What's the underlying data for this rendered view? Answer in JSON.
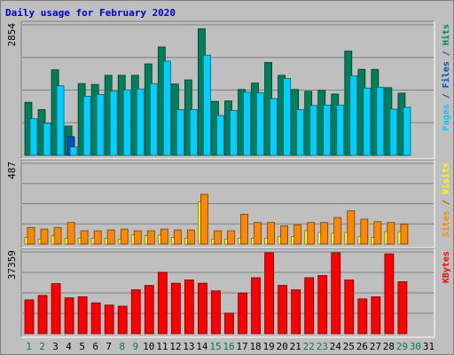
{
  "chart_data": {
    "type": "bar",
    "title": "Daily usage for February 2020",
    "categories": [
      "1",
      "2",
      "3",
      "4",
      "5",
      "6",
      "7",
      "8",
      "9",
      "10",
      "11",
      "12",
      "13",
      "14",
      "15",
      "16",
      "17",
      "18",
      "19",
      "20",
      "21",
      "22",
      "23",
      "24",
      "25",
      "26",
      "27",
      "28",
      "29",
      "30",
      "31"
    ],
    "weekend_days": [
      "1",
      "2",
      "8",
      "9",
      "15",
      "16",
      "22",
      "23",
      "29",
      "30"
    ],
    "panels": [
      {
        "id": "pages-files-hits",
        "ymax": 2854,
        "ymax_label": "2854",
        "right_labels": [
          {
            "text": "Pages",
            "color": "#00c8ff"
          },
          {
            "text": " / ",
            "color": "#00509e"
          },
          {
            "text": "Files",
            "color": "#0050c8"
          },
          {
            "text": " / ",
            "color": "#00509e"
          },
          {
            "text": "Hits",
            "color": "#008850"
          }
        ],
        "series": [
          {
            "name": "Hits",
            "color": "#00805a",
            "values": [
              1160,
              1000,
              1870,
              640,
              1570,
              1550,
              1750,
              1750,
              1750,
              2000,
              2370,
              1560,
              1650,
              2770,
              1180,
              1190,
              1440,
              1580,
              2030,
              1750,
              1440,
              1400,
              1420,
              1340,
              2280,
              1880,
              1880,
              1480,
              1360,
              0,
              0
            ]
          },
          {
            "name": "Files",
            "color": "#0050c8",
            "values": [
              0,
              0,
              0,
              410,
              0,
              0,
              0,
              0,
              0,
              0,
              0,
              0,
              0,
              0,
              0,
              0,
              0,
              0,
              0,
              0,
              0,
              0,
              0,
              0,
              0,
              0,
              0,
              0,
              0,
              0,
              0
            ]
          },
          {
            "name": "Pages",
            "color": "#00d0ff",
            "values": [
              800,
              700,
              1520,
              180,
              1290,
              1330,
              1400,
              1430,
              1450,
              1570,
              2060,
              1000,
              1000,
              2190,
              870,
              980,
              1380,
              1370,
              1240,
              1680,
              1000,
              1090,
              1100,
              1100,
              1740,
              1470,
              1490,
              1010,
              1050,
              0,
              0
            ]
          }
        ]
      },
      {
        "id": "sites-visits",
        "ymax": 487,
        "ymax_label": "487",
        "right_labels": [
          {
            "text": "Sites",
            "color": "#ff8800"
          },
          {
            "text": " / ",
            "color": "#996600"
          },
          {
            "text": "Visits",
            "color": "#ffff00"
          }
        ],
        "series": [
          {
            "name": "Visits",
            "color": "#ffff30",
            "values": [
              40,
              30,
              50,
              35,
              35,
              35,
              35,
              30,
              55,
              50,
              55,
              40,
              35,
              255,
              30,
              30,
              35,
              35,
              35,
              45,
              45,
              80,
              70,
              65,
              70,
              45,
              40,
              75,
              75,
              0,
              0
            ]
          },
          {
            "name": "Sites",
            "color": "#ff8800",
            "values": [
              100,
              90,
              100,
              130,
              80,
              80,
              85,
              90,
              80,
              80,
              90,
              85,
              85,
              300,
              80,
              80,
              180,
              130,
              130,
              110,
              115,
              130,
              130,
              160,
              200,
              150,
              135,
              130,
              120,
              0,
              0
            ]
          }
        ]
      },
      {
        "id": "kbytes",
        "ymax": 37359,
        "ymax_label": "37359",
        "right_labels": [
          {
            "text": "KBytes",
            "color": "#ff0000"
          }
        ],
        "series": [
          {
            "name": "KBytes",
            "color": "#ff0000",
            "values": [
              15500,
              17500,
              22900,
              16400,
              16900,
              14100,
              13100,
              12600,
              20100,
              22100,
              28100,
              23100,
              24600,
              23100,
              19600,
              9400,
              18600,
              25600,
              37000,
              22100,
              20100,
              25600,
              26600,
              37000,
              24600,
              15900,
              16900,
              36500,
              23800,
              0,
              0
            ]
          }
        ]
      }
    ]
  }
}
